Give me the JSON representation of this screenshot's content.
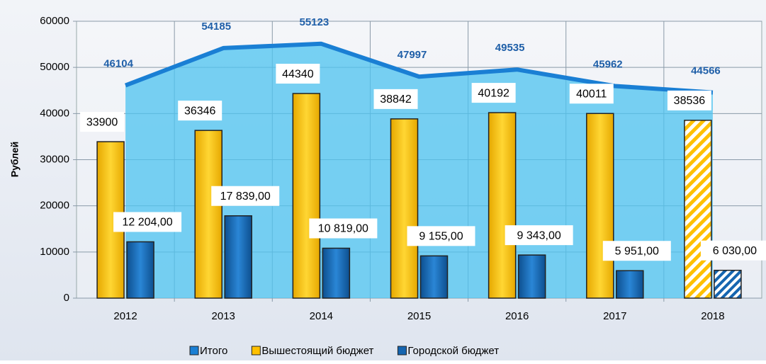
{
  "chart_data": {
    "type": "bar",
    "y_label": "Рублей",
    "categories": [
      "2012",
      "2013",
      "2014",
      "2015",
      "2016",
      "2017",
      "2018"
    ],
    "series": [
      {
        "name": "Итого",
        "type": "area",
        "color": "#1a7fd4",
        "values": [
          46104,
          54185,
          55123,
          47997,
          49535,
          45962,
          44566
        ]
      },
      {
        "name": "Вышестоящий бюджет",
        "color": "#ffc000",
        "values": [
          33900,
          36346,
          44340,
          38842,
          40192,
          40011,
          38536
        ]
      },
      {
        "name": "Городской бюджет",
        "color": "#1565b0",
        "values": [
          12204,
          17839,
          10819,
          9155,
          9343,
          5951,
          6030
        ],
        "value_labels": [
          "12 204,00",
          "17 839,00",
          "10 819,00",
          "9 155,00",
          "9 343,00",
          "5 951,00",
          "6 030,00"
        ]
      }
    ],
    "ylim": [
      0,
      60000
    ],
    "yticks": [
      0,
      10000,
      20000,
      30000,
      40000,
      50000,
      60000
    ],
    "grid": true,
    "hatched_last": true,
    "legend": "bottom"
  }
}
